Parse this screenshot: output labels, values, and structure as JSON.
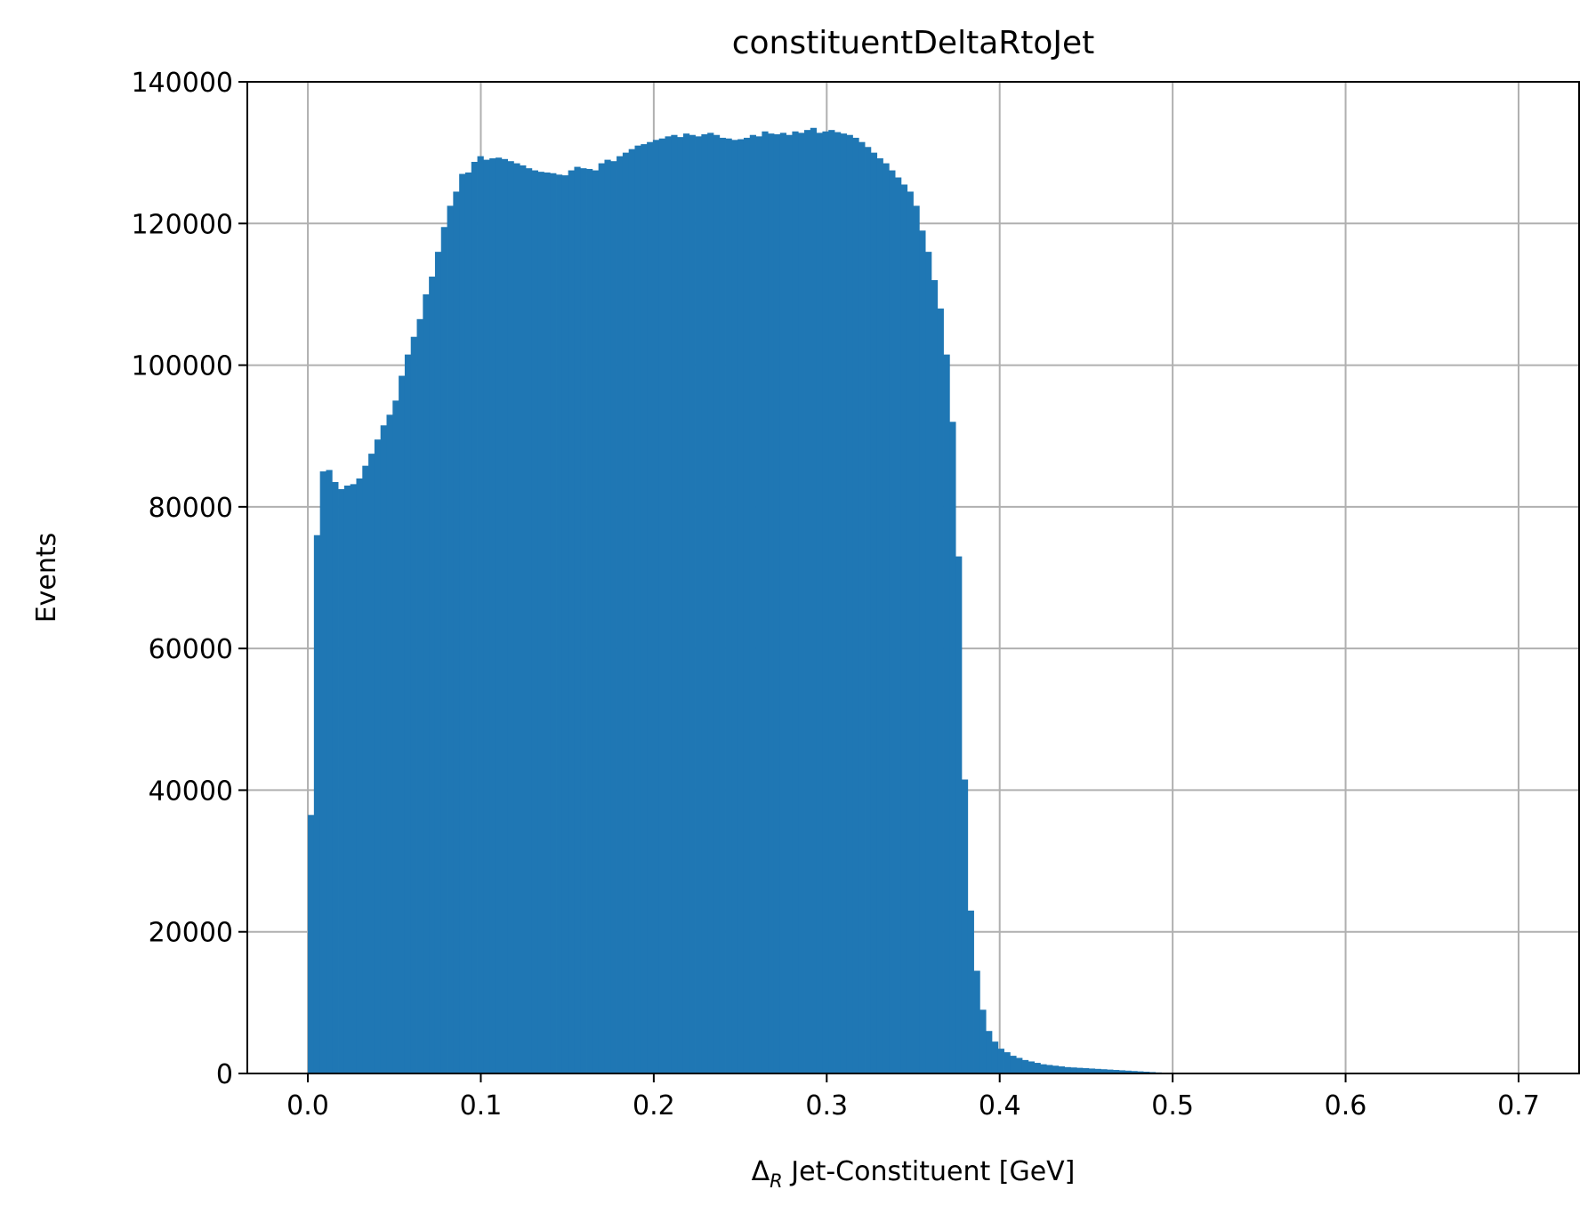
{
  "chart_data": {
    "type": "bar",
    "title": "constituentDeltaRtoJet",
    "xlabel_symbol": "Δ",
    "xlabel_sub": "R",
    "xlabel_rest": " Jet-Constituent [GeV]",
    "ylabel": "Events",
    "xlim": [
      -0.035,
      0.735
    ],
    "ylim": [
      0,
      140000
    ],
    "grid": true,
    "bar_color": "#1f77b4",
    "xticks": [
      0.0,
      0.1,
      0.2,
      0.3,
      0.4,
      0.5,
      0.6,
      0.7
    ],
    "xtick_labels": [
      "0.0",
      "0.1",
      "0.2",
      "0.3",
      "0.4",
      "0.5",
      "0.6",
      "0.7"
    ],
    "yticks": [
      0,
      20000,
      40000,
      60000,
      80000,
      100000,
      120000,
      140000
    ],
    "ytick_labels": [
      "0",
      "20000",
      "40000",
      "60000",
      "80000",
      "100000",
      "120000",
      "140000"
    ],
    "bin_start": 0.0,
    "bin_width": 0.0035,
    "values": [
      36500,
      76000,
      85000,
      85200,
      83500,
      82500,
      83000,
      83200,
      84000,
      85800,
      87500,
      89500,
      91500,
      93000,
      95000,
      98500,
      101500,
      104000,
      106500,
      110000,
      112500,
      116000,
      119500,
      122500,
      124500,
      127000,
      127200,
      128700,
      129500,
      129000,
      129200,
      129300,
      129100,
      128800,
      128500,
      128200,
      127800,
      127500,
      127300,
      127200,
      127100,
      126900,
      126800,
      127500,
      128000,
      127800,
      127700,
      127500,
      128500,
      129000,
      128800,
      129500,
      130000,
      130500,
      131000,
      131200,
      131500,
      131800,
      132000,
      132300,
      132500,
      132200,
      132700,
      132500,
      132300,
      132600,
      132800,
      132500,
      132100,
      132000,
      131800,
      131900,
      132100,
      132500,
      132300,
      133000,
      132700,
      132600,
      132800,
      132500,
      133000,
      132800,
      133200,
      133500,
      132800,
      133000,
      133200,
      132900,
      132700,
      132500,
      132100,
      131500,
      130800,
      130000,
      129200,
      128500,
      127500,
      126500,
      125500,
      124500,
      122500,
      119000,
      116000,
      112000,
      108000,
      101500,
      92000,
      73000,
      41500,
      23000,
      14500,
      9000,
      6000,
      4500,
      3500,
      3000,
      2500,
      2200,
      1900,
      1700,
      1500,
      1300,
      1200,
      1100,
      1000,
      900,
      850,
      800,
      750,
      700,
      650,
      600,
      550,
      500,
      450,
      400,
      350,
      300,
      250,
      200,
      150,
      120,
      100,
      80,
      60,
      50,
      40,
      30,
      20,
      10
    ]
  }
}
